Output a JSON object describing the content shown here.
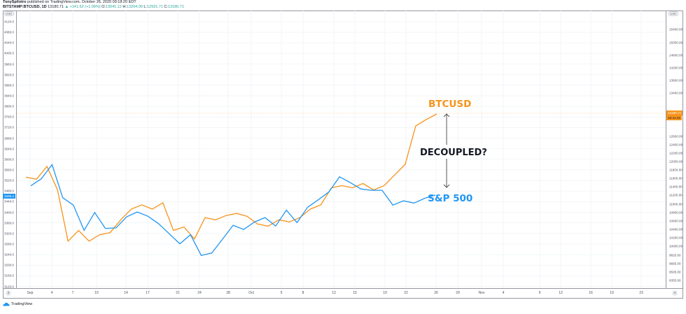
{
  "header": {
    "author": "TonySpilotro",
    "published": "published on TradingView.com, October 26, 2020 09:18:20 EDT",
    "symbol": "BITSTAMP:BTCUSD, 1D",
    "last": "13180.71",
    "change": "▲ +141.62 (+1.09%)",
    "o_label": "O:",
    "o": "13041.12",
    "h_label": "H:",
    "h": "13204.00",
    "l_label": "L:",
    "l": "12931.71",
    "c_label": "C:",
    "c": "13180.71"
  },
  "left_axis": {
    "unit": "USD",
    "ticks": [
      "4120.0",
      "4080.0",
      "4040.0",
      "4000.0",
      "3960.0",
      "3920.0",
      "3880.0",
      "3840.0",
      "3800.0",
      "3760.0",
      "3720.0",
      "3680.0",
      "3640.0",
      "3600.0",
      "3560.0",
      "3520.0",
      "3480.0",
      "3440.0",
      "3400.0",
      "3360.0",
      "3320.0",
      "3280.0",
      "3240.0",
      "3200.0",
      "3160.0",
      "3120.0"
    ],
    "price_tag": "3465.4",
    "corner_button": "2"
  },
  "right_axis": {
    "unit": "USD",
    "ticks": [
      "15400.00",
      "15000.00",
      "14600.00",
      "14200.00",
      "13800.00",
      "13400.00",
      "12600.00",
      "12400.00",
      "12200.00",
      "12000.00",
      "11800.00",
      "11600.00",
      "11400.00",
      "11200.00",
      "11000.00",
      "10800.00",
      "10600.00",
      "10400.00",
      "10200.00",
      "10000.00",
      "9825.00",
      "9665.00",
      "9505.00",
      "9355.00"
    ],
    "price_tag": "13180.71",
    "countdown_tag": "10:41:42",
    "corner_button": "A"
  },
  "time_axis": {
    "labels": [
      "Sep",
      "4",
      "7",
      "10",
      "14",
      "17",
      "21",
      "24",
      "28",
      "Oct",
      "5",
      "8",
      "12",
      "15",
      "19",
      "22",
      "26",
      "29",
      "Nov",
      "4",
      "9",
      "12",
      "16",
      "19",
      "23"
    ]
  },
  "annotations": {
    "btc_label": "BTCUSD",
    "spx_label": "S&P 500",
    "center_text": "DECOUPLED?"
  },
  "footer": {
    "brand": "TradingView"
  },
  "colors": {
    "btc": "#f7931a",
    "spx": "#2196f3",
    "grid": "#eef2f6",
    "axis": "#9598a1"
  },
  "chart_data": {
    "type": "line",
    "title": "BITSTAMP:BTCUSD, 1D vs S&P 500",
    "xlabel": "",
    "ylabel": "USD",
    "x": [
      "Aug 31",
      "Sep 1",
      "Sep 2",
      "Sep 3",
      "Sep 4",
      "Sep 8",
      "Sep 9",
      "Sep 10",
      "Sep 11",
      "Sep 14",
      "Sep 15",
      "Sep 16",
      "Sep 17",
      "Sep 18",
      "Sep 21",
      "Sep 22",
      "Sep 23",
      "Sep 24",
      "Sep 25",
      "Sep 28",
      "Sep 29",
      "Sep 30",
      "Oct 1",
      "Oct 2",
      "Oct 5",
      "Oct 6",
      "Oct 7",
      "Oct 8",
      "Oct 9",
      "Oct 12",
      "Oct 13",
      "Oct 14",
      "Oct 15",
      "Oct 16",
      "Oct 19",
      "Oct 20",
      "Oct 21",
      "Oct 22",
      "Oct 23",
      "Oct 26"
    ],
    "series": [
      {
        "name": "BTCUSD",
        "axis": "right",
        "values": [
          11700,
          11650,
          11950,
          11400,
          10200,
          10450,
          10200,
          10350,
          10400,
          10700,
          10950,
          11050,
          10950,
          11100,
          10450,
          10530,
          10250,
          10750,
          10700,
          10800,
          10850,
          10780,
          10600,
          10550,
          10700,
          10650,
          10750,
          10950,
          11050,
          11450,
          11500,
          11450,
          11550,
          11400,
          11500,
          11750,
          12000,
          12900,
          13050,
          13180
        ]
      },
      {
        "name": "S&P 500",
        "axis": "left",
        "values": [
          3500,
          3527,
          3580,
          3455,
          3427,
          3332,
          3399,
          3339,
          3341,
          3383,
          3401,
          3385,
          3357,
          3319,
          3281,
          3315,
          3237,
          3246,
          3298,
          3351,
          3335,
          3363,
          3380,
          3348,
          3408,
          3361,
          3419,
          3447,
          3477,
          3534,
          3512,
          3488,
          3483,
          3483,
          3427,
          3443,
          3435,
          3453,
          3465
        ]
      }
    ],
    "ylim_left": [
      3100,
      4140
    ],
    "ylim_right": [
      9300,
      15700
    ],
    "grid": true,
    "legend_position": "inline annotations"
  }
}
